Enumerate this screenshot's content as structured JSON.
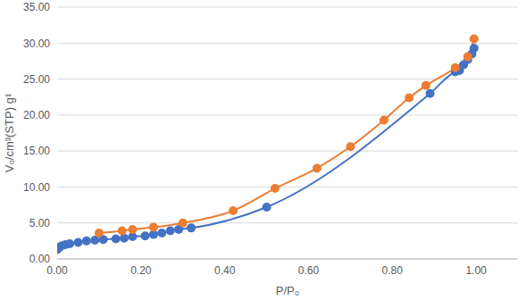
{
  "chart_data": {
    "type": "line",
    "x_label": "P/P₀",
    "y_label": "V₀/cm³(STP) g¹",
    "xlim": [
      0,
      1.1
    ],
    "xticks": [
      {
        "value": 0,
        "label": "0.00"
      },
      {
        "value": 0.2,
        "label": "0.20"
      },
      {
        "value": 0.4,
        "label": "0.40"
      },
      {
        "value": 0.6,
        "label": "0.60"
      },
      {
        "value": 0.8,
        "label": "0.80"
      },
      {
        "value": 1,
        "label": "1.00"
      }
    ],
    "ylim": [
      0,
      35
    ],
    "yticks": [
      {
        "value": 0,
        "label": "0.00"
      },
      {
        "value": 5,
        "label": "5.00"
      },
      {
        "value": 10,
        "label": "10.00"
      },
      {
        "value": 15,
        "label": "15.00"
      },
      {
        "value": 20,
        "label": "20.00"
      },
      {
        "value": 25,
        "label": "25.00"
      },
      {
        "value": 30,
        "label": "30.00"
      },
      {
        "value": 35,
        "label": "35.00"
      }
    ],
    "grid": true,
    "series": [
      {
        "color": "#4472c4",
        "marker": "circle",
        "line_style": "smooth",
        "x": [
          0.0,
          0.005,
          0.01,
          0.02,
          0.03,
          0.05,
          0.07,
          0.09,
          0.11,
          0.14,
          0.16,
          0.18,
          0.21,
          0.23,
          0.25,
          0.27,
          0.29,
          0.32,
          0.5,
          0.89,
          0.95,
          0.96,
          0.97,
          0.98,
          0.99,
          0.995
        ],
        "values": [
          1.3,
          1.6,
          1.8,
          2.0,
          2.1,
          2.3,
          2.5,
          2.6,
          2.7,
          2.8,
          2.9,
          3.1,
          3.2,
          3.4,
          3.6,
          3.9,
          4.1,
          4.3,
          7.2,
          23.0,
          26.0,
          26.2,
          27.0,
          27.7,
          28.5,
          29.3
        ]
      },
      {
        "color": "#ed7d31",
        "marker": "circle",
        "line_style": "smooth",
        "x": [
          0.1,
          0.155,
          0.18,
          0.23,
          0.3,
          0.42,
          0.52,
          0.62,
          0.7,
          0.78,
          0.84,
          0.88,
          0.95,
          0.98,
          0.995
        ],
        "values": [
          3.6,
          3.9,
          4.1,
          4.4,
          5.0,
          6.7,
          9.8,
          12.6,
          15.6,
          19.3,
          22.4,
          24.1,
          26.6,
          28.1,
          30.6
        ]
      }
    ]
  }
}
